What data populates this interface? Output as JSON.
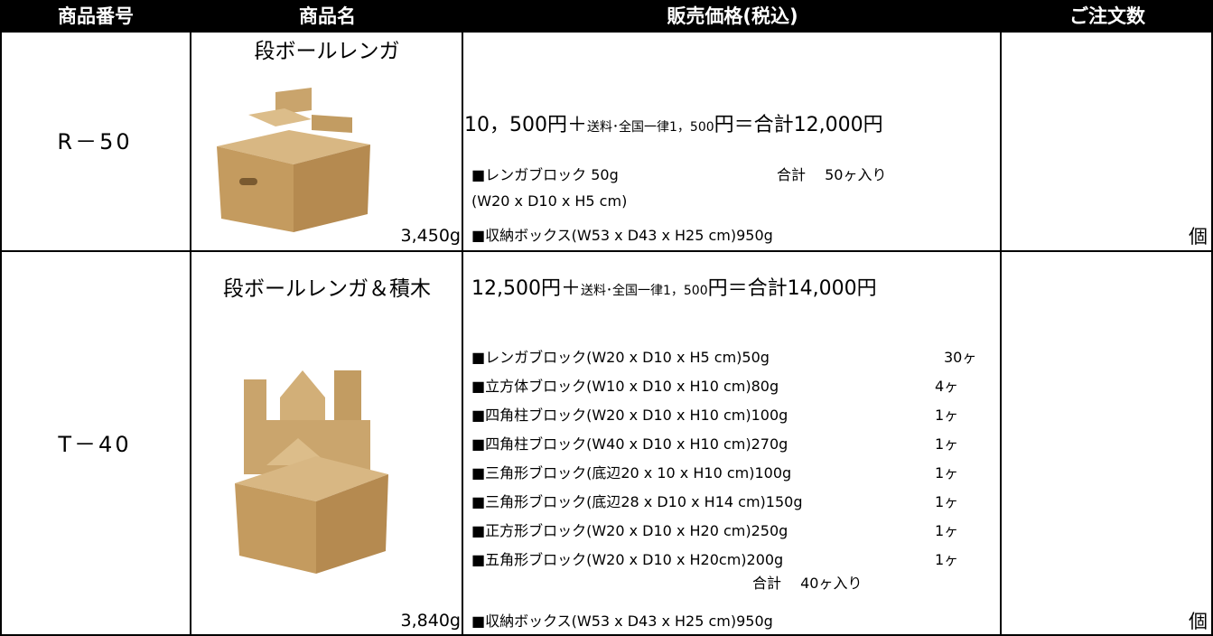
{
  "header": [
    "商品番号",
    "商品名",
    "販売価格(税込)",
    "ご注文数"
  ],
  "rows": [
    {
      "code": "R－50",
      "name": "段ボールレンガ",
      "weight": "3,450g",
      "price": [
        "10，500円＋",
        "送料･全国一律1，500",
        "円＝合計12,000円"
      ],
      "details": [
        {
          "text": "■レンガブロック  50g",
          "count": "合計　 50ヶ入り"
        },
        {
          "text": "(W20 x D10 x H5 cm)"
        },
        {
          "text": "■収納ボックス(W53 x D43 x H25 cm)950g"
        }
      ],
      "unit": "個"
    },
    {
      "code": "T－40",
      "name": "段ボールレンガ＆積木",
      "weight": "3,840g",
      "price": [
        "12,500円＋",
        "送料･全国一律1，500",
        "円＝合計14,000円"
      ],
      "details": [
        {
          "text": "■レンガブロック(W20 x D10 x H5 cm)50g",
          "count": "30ヶ"
        },
        {
          "text": "■立方体ブロック(W10 x D10 x H10 cm)80g",
          "count": "4ヶ"
        },
        {
          "text": "■四角柱ブロック(W20 x D10 x H10 cm)100g",
          "count": "1ヶ"
        },
        {
          "text": "■四角柱ブロック(W40 x D10 x H10 cm)270g",
          "count": "1ヶ"
        },
        {
          "text": "■三角形ブロック(底辺20 x 10 x H10 cm)100g",
          "count": "1ヶ"
        },
        {
          "text": "■三角形ブロック(底辺28 x D10 x H14 cm)150g",
          "count": "1ヶ"
        },
        {
          "text": "■正方形ブロック(W20 x D10 x H20 cm)250g",
          "count": "1ヶ"
        },
        {
          "text": "■五角形ブロック(W20 x D10 x H20cm)200g",
          "count": "1ヶ"
        }
      ],
      "total": "合計　 40ヶ入り",
      "box": "■収納ボックス(W53 x D43 x H25 cm)950g",
      "unit": "個"
    }
  ]
}
